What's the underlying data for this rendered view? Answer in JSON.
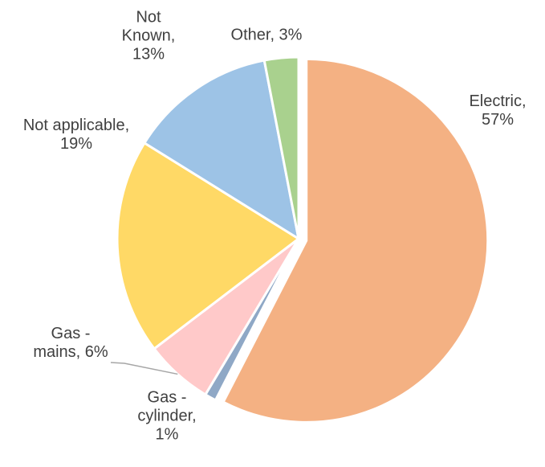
{
  "chart_data": {
    "type": "pie",
    "values": [
      57,
      1,
      6,
      19,
      13,
      3
    ],
    "value_labels": [
      [
        "Electric,",
        "57%"
      ],
      [
        "Gas -",
        "cylinder,",
        "1%"
      ],
      [
        "Gas -",
        "mains, 6%"
      ],
      [
        "Not applicable,",
        "19%"
      ],
      [
        "Not",
        "Known,",
        "13%"
      ],
      [
        "Other, 3%"
      ]
    ],
    "colors": [
      "#F4B183",
      "#8FA8C6",
      "#FFC9C9",
      "#FFD966",
      "#9DC3E6",
      "#A9D18E"
    ],
    "exploded": [
      true,
      false,
      false,
      false,
      false,
      false
    ]
  }
}
